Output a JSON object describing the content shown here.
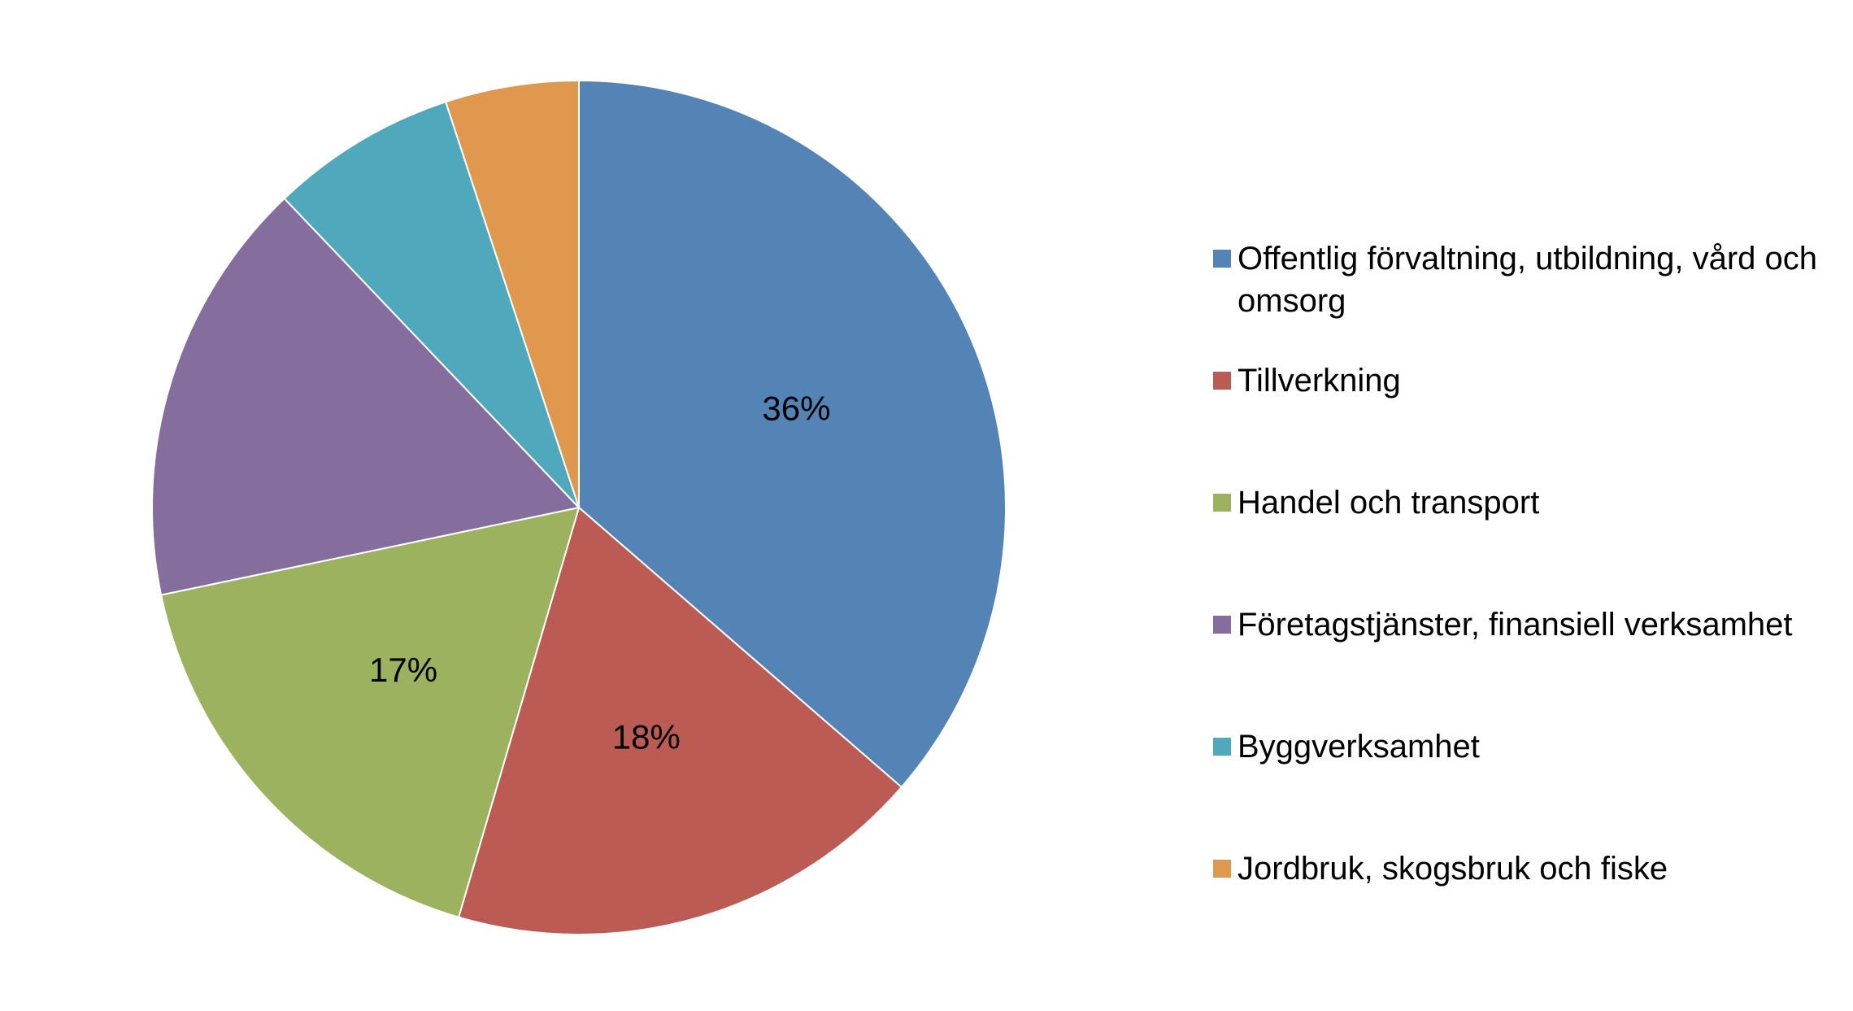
{
  "chart_data": {
    "type": "pie",
    "title": "",
    "slices": [
      {
        "label": "Offentlig förvaltning, utbildning, vård och omsorg",
        "value": 36,
        "data_label": "36%",
        "color": "#5484B6"
      },
      {
        "label": "Tillverkning",
        "value": 18,
        "data_label": "18%",
        "color": "#BC5A54"
      },
      {
        "label": "Handel och transport",
        "value": 17,
        "data_label": "17%",
        "color": "#9CB25E"
      },
      {
        "label": "Företagstjänster, finansiell verksamhet",
        "value": 16,
        "data_label": "",
        "color": "#856D9D"
      },
      {
        "label": "Byggverksamhet",
        "value": 7,
        "data_label": "",
        "color": "#50A8BD"
      },
      {
        "label": "Jordbruk, skogsbruk och fiske",
        "value": 5,
        "data_label": "",
        "color": "#E0984F"
      }
    ],
    "start_angle": "12 o'clock",
    "direction": "clockwise",
    "legend_position": "right"
  }
}
